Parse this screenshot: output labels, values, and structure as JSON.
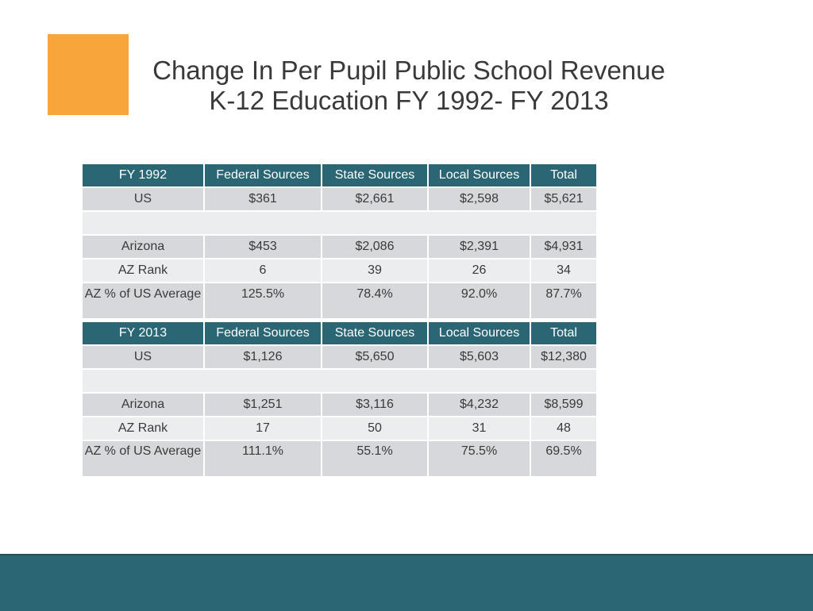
{
  "title": {
    "line1": "Change In Per Pupil Public School Revenue",
    "line2": "K-12 Education FY 1992- FY 2013"
  },
  "colors": {
    "accent": "#F7A63B",
    "header": "#2A6673",
    "row_dark": "#D6D8DB",
    "row_light": "#ECEDEE"
  },
  "table_1992": {
    "headers": [
      "FY 1992",
      "Federal Sources",
      "State Sources",
      "Local Sources",
      "Total"
    ],
    "rows": [
      [
        "US",
        "$361",
        "$2,661",
        "$2,598",
        "$5,621"
      ],
      [
        "",
        "",
        "",
        "",
        ""
      ],
      [
        "Arizona",
        "$453",
        "$2,086",
        "$2,391",
        "$4,931"
      ],
      [
        "AZ Rank",
        "6",
        "39",
        "26",
        "34"
      ],
      [
        "AZ % of US Average",
        "125.5%",
        "78.4%",
        "92.0%",
        "87.7%"
      ]
    ]
  },
  "table_2013": {
    "headers": [
      "FY 2013",
      "Federal Sources",
      "State Sources",
      "Local Sources",
      "Total"
    ],
    "rows": [
      [
        "US",
        "$1,126",
        "$5,650",
        "$5,603",
        "$12,380"
      ],
      [
        "",
        "",
        "",
        "",
        ""
      ],
      [
        "Arizona",
        "$1,251",
        "$3,116",
        "$4,232",
        "$8,599"
      ],
      [
        "AZ Rank",
        "17",
        "50",
        "31",
        "48"
      ],
      [
        "AZ % of US Average",
        "111.1%",
        "55.1%",
        "75.5%",
        "69.5%"
      ]
    ]
  }
}
